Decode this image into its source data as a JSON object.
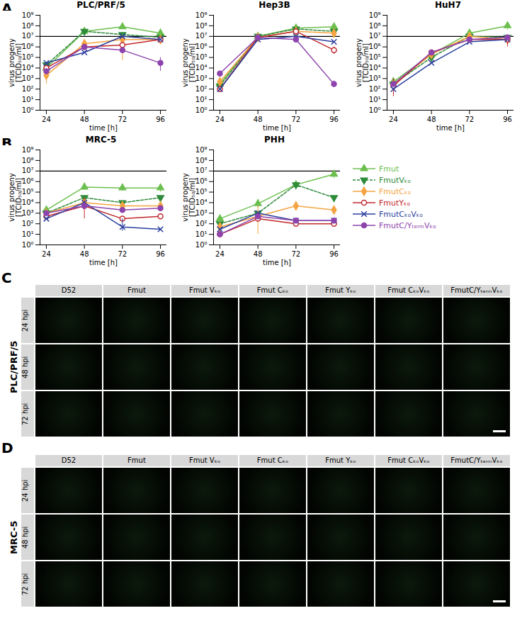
{
  "chart_data": [
    {
      "type": "line",
      "title": "PLC/PRF/5",
      "xlabel": "time [h]",
      "ylabel": "virus progeny\n[TCID₅₀/ml]",
      "log": "y",
      "x": [
        24,
        48,
        72,
        96
      ],
      "xlim": [
        20,
        100
      ],
      "xticks": [
        24,
        48,
        72,
        96
      ],
      "ylim": [
        1,
        1000000000
      ],
      "yticks": [
        {
          "value": 1,
          "label": "10⁰"
        },
        {
          "value": 10,
          "label": "10¹"
        },
        {
          "value": 100,
          "label": "10²"
        },
        {
          "value": 1000,
          "label": "10³"
        },
        {
          "value": 10000,
          "label": "10⁴"
        },
        {
          "value": 100000,
          "label": "10⁵"
        },
        {
          "value": 1000000,
          "label": "10⁶"
        },
        {
          "value": 10000000,
          "label": "10⁷"
        },
        {
          "value": 100000000,
          "label": "10⁸"
        },
        {
          "value": 1000000000,
          "label": "10⁹"
        }
      ],
      "reference_value": 10000000,
      "series": [
        {
          "name": "Fmut",
          "color": "#6cbf4e",
          "marker": "triangle",
          "line_style": "solid",
          "values": [
            10000,
            30000000,
            80000000,
            20000000
          ],
          "errors": [
            null,
            null,
            null,
            null
          ]
        },
        {
          "name": "FmutVₖₒ",
          "color": "#2e8b3a",
          "marker": "triangle-down",
          "line_style": "dashed",
          "values": [
            20000,
            30000000,
            15000000,
            8000000
          ],
          "errors": [
            null,
            null,
            null,
            null
          ]
        },
        {
          "name": "FmutCₖₒ",
          "color": "#f5a442",
          "marker": "diamond",
          "line_style": "solid",
          "values": [
            2000,
            2000000,
            5000000,
            5000000
          ],
          "errors": [
            [
              300,
              5000
            ],
            null,
            [
              50000,
              10000000
            ],
            null
          ]
        },
        {
          "name": "FmutYₖₒ",
          "color": "#c0282d",
          "marker": "open-circle",
          "line_style": "solid",
          "values": [
            10000,
            1000000,
            1500000,
            5000000
          ],
          "errors": [
            null,
            null,
            null,
            null
          ]
        },
        {
          "name": "FmutCₖₒVₖₒ",
          "color": "#2b3f9e",
          "marker": "times",
          "line_style": "solid",
          "values": [
            30000,
            300000,
            10000000,
            5000000
          ],
          "errors": [
            null,
            null,
            null,
            null
          ]
        },
        {
          "name": "FmutC/YₜₑᵣₘVₖₒ",
          "color": "#8e44ad",
          "marker": "circle",
          "line_style": "solid",
          "values": [
            5000,
            1000000,
            500000,
            30000
          ],
          "errors": [
            null,
            null,
            null,
            [
              5000,
              100000
            ]
          ]
        }
      ]
    },
    {
      "type": "line",
      "title": "Hep3B",
      "xlabel": "time [h]",
      "ylabel": "virus progeny\n[TCID₅₀/ml]",
      "log": "y",
      "x": [
        24,
        48,
        72,
        96
      ],
      "xlim": [
        20,
        100
      ],
      "xticks": [
        24,
        48,
        72,
        96
      ],
      "ylim": [
        1,
        1000000000
      ],
      "yticks": [
        {
          "value": 1,
          "label": "10⁰"
        },
        {
          "value": 10,
          "label": "10¹"
        },
        {
          "value": 100,
          "label": "10²"
        },
        {
          "value": 1000,
          "label": "10³"
        },
        {
          "value": 10000,
          "label": "10⁴"
        },
        {
          "value": 100000,
          "label": "10⁵"
        },
        {
          "value": 1000000,
          "label": "10⁶"
        },
        {
          "value": 10000000,
          "label": "10⁷"
        },
        {
          "value": 100000000,
          "label": "10⁸"
        },
        {
          "value": 1000000000,
          "label": "10⁹"
        }
      ],
      "reference_value": 10000000,
      "series": [
        {
          "name": "Fmut",
          "color": "#6cbf4e",
          "marker": "triangle",
          "line_style": "solid",
          "values": [
            300,
            10000000,
            60000000,
            80000000
          ],
          "errors": [
            null,
            null,
            null,
            null
          ]
        },
        {
          "name": "FmutVₖₒ",
          "color": "#2e8b3a",
          "marker": "triangle-down",
          "line_style": "dashed",
          "values": [
            200,
            10000000,
            50000000,
            30000000
          ],
          "errors": [
            null,
            null,
            null,
            null
          ]
        },
        {
          "name": "FmutCₖₒ",
          "color": "#f5a442",
          "marker": "diamond",
          "line_style": "solid",
          "values": [
            500,
            8000000,
            30000000,
            20000000
          ],
          "errors": [
            null,
            null,
            null,
            null
          ]
        },
        {
          "name": "FmutYₖₒ",
          "color": "#c0282d",
          "marker": "open-circle",
          "line_style": "solid",
          "values": [
            100,
            8000000,
            30000000,
            500000
          ],
          "errors": [
            null,
            null,
            null,
            [
              200000,
              1000000
            ]
          ]
        },
        {
          "name": "FmutCₖₒVₖₒ",
          "color": "#2b3f9e",
          "marker": "times",
          "line_style": "solid",
          "values": [
            100,
            5000000,
            10000000,
            3000000
          ],
          "errors": [
            null,
            null,
            null,
            null
          ]
        },
        {
          "name": "FmutC/YₜₑᵣₘVₖₒ",
          "color": "#8e44ad",
          "marker": "circle",
          "line_style": "solid",
          "values": [
            3000,
            8000000,
            5000000,
            300
          ],
          "errors": [
            null,
            null,
            null,
            [
              150,
              600
            ]
          ]
        }
      ]
    },
    {
      "type": "line",
      "title": "HuH7",
      "xlabel": "time [h]",
      "ylabel": "virus progeny\n[TCID₅₀/ml]",
      "log": "y",
      "x": [
        24,
        48,
        72,
        96
      ],
      "xlim": [
        20,
        100
      ],
      "xticks": [
        24,
        48,
        72,
        96
      ],
      "ylim": [
        1,
        1000000000
      ],
      "yticks": [
        {
          "value": 1,
          "label": "10⁰"
        },
        {
          "value": 10,
          "label": "10¹"
        },
        {
          "value": 100,
          "label": "10²"
        },
        {
          "value": 1000,
          "label": "10³"
        },
        {
          "value": 10000,
          "label": "10⁴"
        },
        {
          "value": 100000,
          "label": "10⁵"
        },
        {
          "value": 1000000,
          "label": "10⁶"
        },
        {
          "value": 10000000,
          "label": "10⁷"
        },
        {
          "value": 100000000,
          "label": "10⁸"
        },
        {
          "value": 1000000000,
          "label": "10⁹"
        }
      ],
      "reference_value": 10000000,
      "series": [
        {
          "name": "Fmut",
          "color": "#6cbf4e",
          "marker": "triangle",
          "line_style": "solid",
          "values": [
            500,
            200000,
            20000000,
            100000000
          ],
          "errors": [
            null,
            null,
            null,
            [
              40000000,
              200000000
            ]
          ]
        },
        {
          "name": "FmutVₖₒ",
          "color": "#2e8b3a",
          "marker": "triangle-down",
          "line_style": "dashed",
          "values": [
            300,
            100000,
            10000000,
            8000000
          ],
          "errors": [
            null,
            null,
            null,
            null
          ]
        },
        {
          "name": "FmutCₖₒ",
          "color": "#f5a442",
          "marker": "diamond",
          "line_style": "solid",
          "values": [
            300,
            200000,
            10000000,
            5000000
          ],
          "errors": [
            null,
            null,
            null,
            null
          ]
        },
        {
          "name": "FmutYₖₒ",
          "color": "#c0282d",
          "marker": "open-circle",
          "line_style": "solid",
          "values": [
            200,
            300000,
            5000000,
            5000000
          ],
          "errors": [
            [
              20,
              1000
            ],
            null,
            null,
            [
              1000000,
              10000000
            ]
          ]
        },
        {
          "name": "FmutCₖₒVₖₒ",
          "color": "#2b3f9e",
          "marker": "times",
          "line_style": "solid",
          "values": [
            100,
            30000,
            3000000,
            5000000
          ],
          "errors": [
            null,
            null,
            null,
            null
          ]
        },
        {
          "name": "FmutC/YₜₑᵣₘVₖₒ",
          "color": "#8e44ad",
          "marker": "circle",
          "line_style": "solid",
          "values": [
            300,
            300000,
            5000000,
            8000000
          ],
          "errors": [
            null,
            null,
            null,
            null
          ]
        }
      ]
    },
    {
      "type": "line",
      "title": "MRC-5",
      "xlabel": "time [h]",
      "ylabel": "virus progeny\n[TCID₅₀/ml]",
      "log": "y",
      "x": [
        24,
        48,
        72,
        96
      ],
      "xlim": [
        20,
        100
      ],
      "xticks": [
        24,
        48,
        72,
        96
      ],
      "ylim": [
        1,
        1000000000
      ],
      "yticks": [
        {
          "value": 1,
          "label": "10⁰"
        },
        {
          "value": 10,
          "label": "10¹"
        },
        {
          "value": 100,
          "label": "10²"
        },
        {
          "value": 1000,
          "label": "10³"
        },
        {
          "value": 10000,
          "label": "10⁴"
        },
        {
          "value": 100000,
          "label": "10⁵"
        },
        {
          "value": 1000000,
          "label": "10⁶"
        },
        {
          "value": 10000000,
          "label": "10⁷"
        },
        {
          "value": 100000000,
          "label": "10⁸"
        },
        {
          "value": 1000000000,
          "label": "10⁹"
        }
      ],
      "reference_value": 10000000,
      "series": [
        {
          "name": "Fmut",
          "color": "#6cbf4e",
          "marker": "triangle",
          "line_style": "solid",
          "values": [
            2000,
            300000,
            250000,
            250000
          ],
          "errors": [
            null,
            [
              150000,
              500000
            ],
            [
              120000,
              500000
            ],
            [
              100000,
              500000
            ]
          ]
        },
        {
          "name": "FmutVₖₒ",
          "color": "#2e8b3a",
          "marker": "triangle-down",
          "line_style": "dashed",
          "values": [
            1000,
            30000,
            10000,
            30000
          ],
          "errors": [
            null,
            null,
            null,
            null
          ]
        },
        {
          "name": "FmutCₖₒ",
          "color": "#f5a442",
          "marker": "diamond",
          "line_style": "solid",
          "values": [
            1000,
            10000,
            5000,
            5000
          ],
          "errors": [
            null,
            null,
            null,
            null
          ]
        },
        {
          "name": "FmutYₖₒ",
          "color": "#c0282d",
          "marker": "open-circle",
          "line_style": "solid",
          "values": [
            500,
            5000,
            300,
            500
          ],
          "errors": [
            null,
            [
              300,
              30000
            ],
            null,
            null
          ]
        },
        {
          "name": "FmutCₖₒVₖₒ",
          "color": "#2b3f9e",
          "marker": "times",
          "line_style": "solid",
          "values": [
            300,
            10000,
            50,
            30
          ],
          "errors": [
            null,
            null,
            [
              20,
              300
            ],
            null
          ]
        },
        {
          "name": "FmutC/YₜₑᵣₘVₖₒ",
          "color": "#8e44ad",
          "marker": "circle",
          "line_style": "solid",
          "values": [
            1000,
            5000,
            2000,
            3000
          ],
          "errors": [
            null,
            null,
            null,
            null
          ]
        }
      ]
    },
    {
      "type": "line",
      "title": "PHH",
      "xlabel": "time [h]",
      "ylabel": "virus progeny\n[TCID₅₀/ml]",
      "log": "y",
      "legend": "right",
      "x": [
        24,
        48,
        72,
        96
      ],
      "xlim": [
        20,
        100
      ],
      "xticks": [
        24,
        48,
        72,
        96
      ],
      "ylim": [
        1,
        1000000000
      ],
      "yticks": [
        {
          "value": 1,
          "label": "10⁰"
        },
        {
          "value": 10,
          "label": "10¹"
        },
        {
          "value": 100,
          "label": "10²"
        },
        {
          "value": 1000,
          "label": "10³"
        },
        {
          "value": 10000,
          "label": "10⁴"
        },
        {
          "value": 100000,
          "label": "10⁵"
        },
        {
          "value": 1000000,
          "label": "10⁶"
        },
        {
          "value": 10000000,
          "label": "10⁷"
        },
        {
          "value": 100000000,
          "label": "10⁸"
        },
        {
          "value": 1000000000,
          "label": "10⁹"
        }
      ],
      "reference_value": 10000000,
      "series": [
        {
          "name": "Fmut",
          "color": "#6cbf4e",
          "marker": "triangle",
          "line_style": "solid",
          "values": [
            300,
            8000,
            500000,
            5000000
          ],
          "errors": [
            null,
            [
              3000,
              20000
            ],
            null,
            [
              2000000,
              10000000
            ]
          ]
        },
        {
          "name": "FmutVₖₒ",
          "color": "#2e8b3a",
          "marker": "triangle-down",
          "line_style": "dashed",
          "values": [
            100,
            1000,
            500000,
            30000
          ],
          "errors": [
            null,
            null,
            [
              200000,
              800000
            ],
            null
          ]
        },
        {
          "name": "FmutCₖₒ",
          "color": "#f5a442",
          "marker": "diamond",
          "line_style": "solid",
          "values": [
            50,
            500,
            5000,
            2000
          ],
          "errors": [
            null,
            [
              10,
              5000
            ],
            [
              2000,
              10000
            ],
            null
          ]
        },
        {
          "name": "FmutYₖₒ",
          "color": "#c0282d",
          "marker": "open-circle",
          "line_style": "solid",
          "values": [
            10,
            300,
            100,
            100
          ],
          "errors": [
            null,
            null,
            null,
            null
          ]
        },
        {
          "name": "FmutCₖₒVₖₒ",
          "color": "#2b3f9e",
          "marker": "times",
          "line_style": "solid",
          "values": [
            30,
            1000,
            200,
            200
          ],
          "errors": [
            null,
            null,
            null,
            null
          ]
        },
        {
          "name": "FmutC/YₜₑᵣₘVₖₒ",
          "color": "#8e44ad",
          "marker": "circle",
          "line_style": "solid",
          "values": [
            10,
            500,
            200,
            200
          ],
          "errors": [
            null,
            null,
            null,
            null
          ]
        }
      ]
    }
  ],
  "panel_labels": [
    "A",
    "B",
    "C",
    "D"
  ],
  "image_grids": [
    {
      "row_title": "PLC/PRF/5",
      "columns": [
        "D52",
        "Fmut",
        "Fmut Vₖₒ",
        "Fmut Cₖₒ",
        "Fmut Yₖₒ",
        "Fmut CₖₒVₖₒ",
        "FmutC/YₜₑᵣₘVₖₒ"
      ],
      "rows": [
        "24 hpi",
        "48 hpi",
        "72 hpi"
      ]
    },
    {
      "row_title": "MRC-5",
      "columns": [
        "D52",
        "Fmut",
        "Fmut Vₖₒ",
        "Fmut Cₖₒ",
        "Fmut Yₖₒ",
        "Fmut CₖₒVₖₒ",
        "FmutC/YₜₑᵣₘVₖₒ"
      ],
      "rows": [
        "24 hpi",
        "48 hpi",
        "72 hpi"
      ]
    }
  ]
}
